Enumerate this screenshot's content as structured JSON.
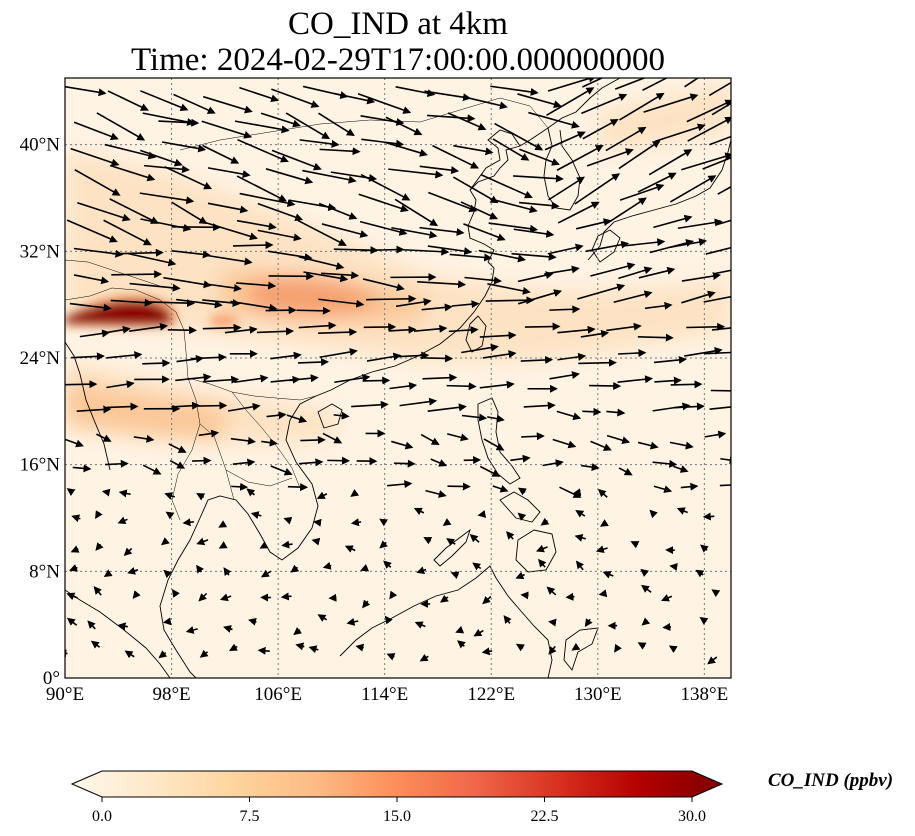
{
  "title": {
    "line1": "CO_IND at 4km",
    "line2": "Time: 2024-02-29T17:00:00.000000000"
  },
  "map": {
    "lon_range": [
      90,
      140
    ],
    "lat_range": [
      0,
      45
    ],
    "gridlines": true,
    "x_ticks": [
      "90°E",
      "98°E",
      "106°E",
      "114°E",
      "122°E",
      "130°E",
      "138°E"
    ],
    "x_tick_values": [
      90,
      98,
      106,
      114,
      122,
      130,
      138
    ],
    "y_ticks": [
      "0°",
      "8°N",
      "16°N",
      "24°N",
      "32°N",
      "40°N"
    ],
    "y_tick_values": [
      0,
      8,
      16,
      24,
      32,
      40
    ]
  },
  "colorbar": {
    "label": "CO_IND (ppbv)",
    "ticks": [
      "0.0",
      "7.5",
      "15.0",
      "22.5",
      "30.0"
    ],
    "tick_values": [
      0,
      7.5,
      15,
      22.5,
      30
    ],
    "range": [
      0,
      30
    ],
    "extend": "both",
    "colormap": "OrRd",
    "colors": [
      "#fff7ec",
      "#fee8c8",
      "#fdd49e",
      "#fdbb84",
      "#fc8d59",
      "#ef6548",
      "#d7301f",
      "#b30000",
      "#7f0000"
    ]
  },
  "wind": {
    "arrow_color": "#000000"
  },
  "plume_colors": {
    "background": "#fff3e4",
    "light": "#fde3c4",
    "medium": "#fbc898",
    "strong": "#f6a070",
    "intense": "#8b0000"
  }
}
